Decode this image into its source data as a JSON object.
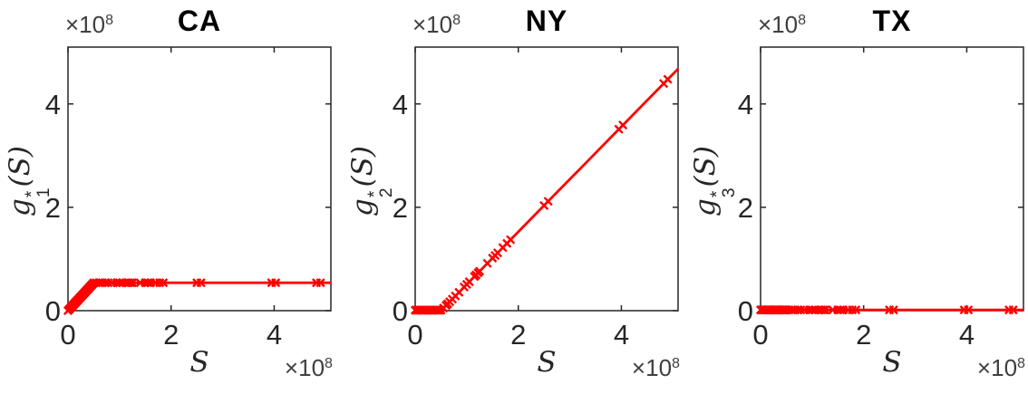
{
  "chart_data": [
    {
      "type": "line",
      "title": "CA",
      "xlabel": "S",
      "ylabel": {
        "base": "g",
        "sup": "*",
        "sub": "1",
        "arg": "(S)"
      },
      "x_exponent": {
        "base": "×10",
        "exp": "8"
      },
      "y_exponent": {
        "base": "×10",
        "exp": "8"
      },
      "xlim": [
        0,
        5.1
      ],
      "ylim": [
        0,
        5.1
      ],
      "xticks": [
        0,
        2,
        4
      ],
      "yticks": [
        0,
        2,
        4
      ],
      "grid": false,
      "legend": null,
      "axis_color": "#262626",
      "text_color": "#262626",
      "title_color": "#000000",
      "line_color": "#ff0000",
      "marker": "x",
      "units": "×10^8 on both axes",
      "segments": [
        [
          0,
          0
        ],
        [
          0.5,
          0.54
        ],
        [
          5.1,
          0.54
        ]
      ],
      "marker_s": [
        0,
        0.02,
        0.04,
        0.06,
        0.08,
        0.1,
        0.12,
        0.14,
        0.16,
        0.18,
        0.2,
        0.22,
        0.24,
        0.26,
        0.28,
        0.3,
        0.32,
        0.34,
        0.36,
        0.38,
        0.4,
        0.42,
        0.44,
        0.46,
        0.48,
        0.5,
        0.55,
        0.6,
        0.63,
        0.67,
        0.72,
        0.78,
        0.85,
        0.95,
        1.0,
        1.05,
        1.15,
        1.18,
        1.22,
        1.25,
        1.4,
        1.5,
        1.55,
        1.6,
        1.7,
        1.78,
        1.85,
        2.5,
        2.58,
        3.95,
        4.03,
        4.82,
        4.9
      ]
    },
    {
      "type": "line",
      "title": "NY",
      "xlabel": "S",
      "ylabel": {
        "base": "g",
        "sup": "*",
        "sub": "2",
        "arg": "(S)"
      },
      "x_exponent": {
        "base": "×10",
        "exp": "8"
      },
      "y_exponent": {
        "base": "×10",
        "exp": "8"
      },
      "xlim": [
        0,
        5.1
      ],
      "ylim": [
        0,
        5.1
      ],
      "xticks": [
        0,
        2,
        4
      ],
      "yticks": [
        0,
        2,
        4
      ],
      "grid": false,
      "legend": null,
      "axis_color": "#262626",
      "text_color": "#262626",
      "title_color": "#000000",
      "line_color": "#ff0000",
      "marker": "x",
      "units": "×10^8 on both axes",
      "segments": [
        [
          0,
          0.01
        ],
        [
          0.51,
          0.01
        ],
        [
          5.1,
          4.68
        ]
      ],
      "marker_s": [
        0,
        0.02,
        0.04,
        0.06,
        0.08,
        0.1,
        0.12,
        0.14,
        0.16,
        0.18,
        0.2,
        0.22,
        0.24,
        0.26,
        0.28,
        0.3,
        0.32,
        0.34,
        0.36,
        0.38,
        0.4,
        0.42,
        0.44,
        0.46,
        0.48,
        0.5,
        0.55,
        0.6,
        0.63,
        0.67,
        0.72,
        0.78,
        0.85,
        0.95,
        1.0,
        1.05,
        1.15,
        1.18,
        1.22,
        1.25,
        1.4,
        1.5,
        1.55,
        1.6,
        1.7,
        1.78,
        1.85,
        2.5,
        2.58,
        3.95,
        4.03,
        4.82,
        4.9
      ]
    },
    {
      "type": "line",
      "title": "TX",
      "xlabel": "S",
      "ylabel": {
        "base": "g",
        "sup": "*",
        "sub": "3",
        "arg": "(S)"
      },
      "x_exponent": {
        "base": "×10",
        "exp": "8"
      },
      "y_exponent": {
        "base": "×10",
        "exp": "8"
      },
      "xlim": [
        0,
        5.1
      ],
      "ylim": [
        0,
        5.1
      ],
      "xticks": [
        0,
        2,
        4
      ],
      "yticks": [
        0,
        2,
        4
      ],
      "grid": false,
      "legend": null,
      "axis_color": "#262626",
      "text_color": "#262626",
      "title_color": "#000000",
      "line_color": "#ff0000",
      "marker": "x",
      "units": "×10^8 on both axes",
      "segments": [
        [
          0,
          0.015
        ],
        [
          5.1,
          0.015
        ]
      ],
      "marker_s": [
        0,
        0.02,
        0.04,
        0.06,
        0.08,
        0.1,
        0.12,
        0.14,
        0.16,
        0.18,
        0.2,
        0.22,
        0.24,
        0.26,
        0.28,
        0.3,
        0.32,
        0.34,
        0.36,
        0.38,
        0.4,
        0.42,
        0.44,
        0.46,
        0.48,
        0.5,
        0.55,
        0.6,
        0.63,
        0.67,
        0.72,
        0.78,
        0.85,
        0.95,
        1.0,
        1.05,
        1.15,
        1.18,
        1.22,
        1.25,
        1.4,
        1.5,
        1.55,
        1.6,
        1.7,
        1.78,
        1.85,
        2.5,
        2.58,
        3.95,
        4.03,
        4.82,
        4.9
      ]
    }
  ]
}
